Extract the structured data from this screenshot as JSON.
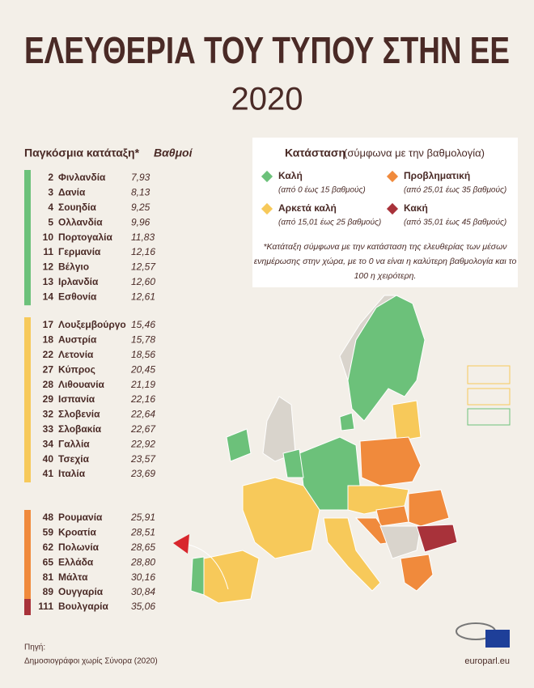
{
  "header": {
    "title": "ΕΛΕΥΘΕΡΙΑ ΤΟΥ ΤΥΠΟΥ ΣΤΗΝ ΕΕ",
    "year": "2020"
  },
  "ranking": {
    "heading": "Παγκόσμια κατάταξη*",
    "score_heading": "Βαθμοί",
    "groups": [
      {
        "color": "#6cc17a",
        "rows": [
          [
            "2",
            "Φινλανδία",
            "7,93"
          ],
          [
            "3",
            "Δανία",
            "8,13"
          ],
          [
            "4",
            "Σουηδία",
            "9,25"
          ],
          [
            "5",
            "Ολλανδία",
            "9,96"
          ],
          [
            "10",
            "Πορτογαλία",
            "11,83"
          ],
          [
            "11",
            "Γερμανία",
            "12,16"
          ],
          [
            "12",
            "Βέλγιο",
            "12,57"
          ],
          [
            "13",
            "Ιρλανδία",
            "12,60"
          ],
          [
            "14",
            "Εσθονία",
            "12,61"
          ]
        ]
      },
      {
        "color": "#f7c95a",
        "rows": [
          [
            "17",
            "Λουξεμβούργο",
            "15,46"
          ],
          [
            "18",
            "Αυστρία",
            "15,78"
          ],
          [
            "22",
            "Λετονία",
            "18,56"
          ],
          [
            "27",
            "Κύπρος",
            "20,45"
          ],
          [
            "28",
            "Λιθουανία",
            "21,19"
          ],
          [
            "29",
            "Ισπανία",
            "22,16"
          ],
          [
            "32",
            "Σλοβενία",
            "22,64"
          ],
          [
            "33",
            "Σλοβακία",
            "22,67"
          ],
          [
            "34",
            "Γαλλία",
            "22,92"
          ],
          [
            "40",
            "Τσεχία",
            "23,57"
          ],
          [
            "41",
            "Ιταλία",
            "23,69"
          ]
        ]
      },
      {
        "color": "#f08a3c",
        "rows": [
          [
            "48",
            "Ρουμανία",
            "25,91"
          ],
          [
            "59",
            "Κροατία",
            "28,51"
          ],
          [
            "62",
            "Πολωνία",
            "28,65"
          ],
          [
            "65",
            "Ελλάδα",
            "28,80"
          ],
          [
            "81",
            "Μάλτα",
            "30,16"
          ],
          [
            "89",
            "Ουγγαρία",
            "30,84"
          ]
        ]
      },
      {
        "color": "#a8323a",
        "rows": [
          [
            "111",
            "Βουλγαρία",
            "35,06"
          ]
        ]
      }
    ]
  },
  "legend": {
    "title": "Κατάσταση",
    "subtitle": "(σύμφωνα με την βαθμολογία)",
    "items": [
      {
        "label": "Καλή",
        "range": "(από 0 έως 15 βαθμούς)",
        "color": "#6cc17a"
      },
      {
        "label": "Προβληματική",
        "range": "(από 25,01 έως 35 βαθμούς)",
        "color": "#f08a3c"
      },
      {
        "label": "Αρκετά καλή",
        "range": "(από 15,01 έως 25 βαθμούς)",
        "color": "#f7c95a"
      },
      {
        "label": "Κακή",
        "range": "(από 35,01 έως 45 βαθμούς)",
        "color": "#a8323a"
      }
    ],
    "note": [
      "*Κατάταξη σύμφωνα με την κατάσταση της ελευθερίας των μέσων",
      "ενημέρωσης στην χώρα, με το 0 να είναι η καλύτερη βαθμολογία και το",
      "100 η χειρότερη."
    ]
  },
  "source": {
    "label": "Πηγή:",
    "text": "Δημοσιογράφοι χωρίς Σύνορα (2020)"
  },
  "footer": "europarl.eu"
}
